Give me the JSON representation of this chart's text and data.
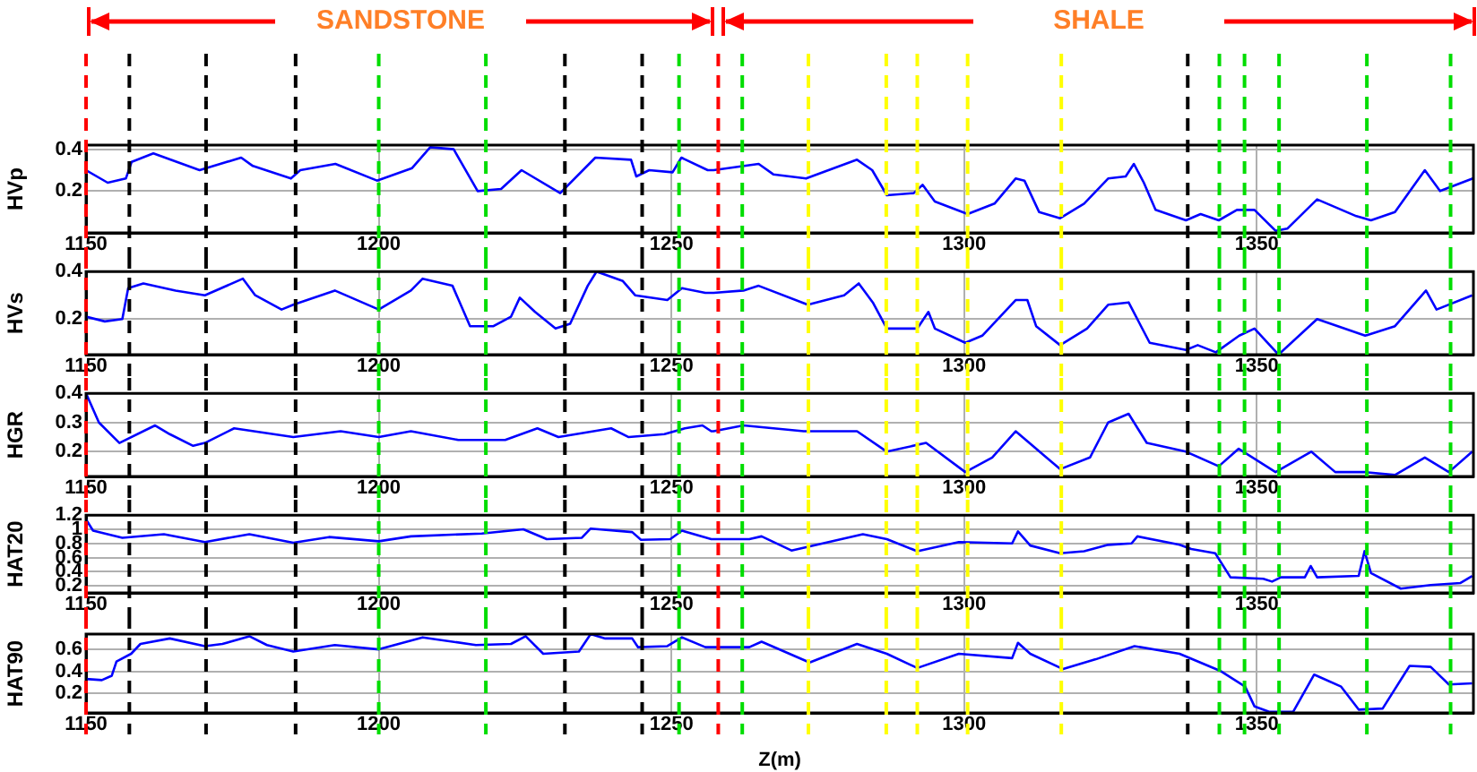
{
  "chart_data": [
    {
      "type": "line",
      "ylabel": "HVp",
      "xlim": [
        1150,
        1387
      ],
      "xticks": [
        1150,
        1200,
        1250,
        1300,
        1350
      ],
      "ylim": [
        0,
        0.42
      ],
      "yticks": [
        0.2,
        0.4
      ],
      "grid": true,
      "legend": false,
      "color": "#0000ff",
      "x": [
        1150,
        1153.7,
        1156.8,
        1157.8,
        1161.5,
        1169.4,
        1176.5,
        1178.5,
        1185,
        1186.6,
        1192.6,
        1199.7,
        1205.7,
        1208.8,
        1212.8,
        1216.9,
        1220.9,
        1224.4,
        1231,
        1237,
        1243.1,
        1244,
        1246.2,
        1250.2,
        1251.7,
        1256.2,
        1257.2,
        1264.9,
        1267.4,
        1273,
        1281.7,
        1284.3,
        1286.8,
        1291.4,
        1292.9,
        1295,
        1300.6,
        1305.2,
        1308.8,
        1310.3,
        1312.8,
        1316.4,
        1320.5,
        1324.6,
        1327.6,
        1329,
        1330.7,
        1332.7,
        1337.9,
        1340.4,
        1343.5,
        1346.6,
        1349.6,
        1353.2,
        1355.2,
        1360.3,
        1367,
        1369.5,
        1373.6,
        1378.7,
        1381.3,
        1386.9
      ],
      "values": [
        0.3,
        0.24,
        0.26,
        0.34,
        0.38,
        0.3,
        0.36,
        0.32,
        0.26,
        0.3,
        0.33,
        0.25,
        0.31,
        0.41,
        0.4,
        0.2,
        0.21,
        0.3,
        0.19,
        0.36,
        0.35,
        0.27,
        0.3,
        0.29,
        0.36,
        0.3,
        0.3,
        0.33,
        0.28,
        0.26,
        0.35,
        0.3,
        0.18,
        0.19,
        0.23,
        0.15,
        0.09,
        0.14,
        0.26,
        0.25,
        0.1,
        0.07,
        0.14,
        0.26,
        0.27,
        0.33,
        0.24,
        0.11,
        0.06,
        0.09,
        0.06,
        0.11,
        0.11,
        0.01,
        0.02,
        0.16,
        0.08,
        0.06,
        0.1,
        0.3,
        0.2,
        0.26
      ],
      "annotations": [
        "SANDSTONE",
        "SHALE"
      ],
      "ref_lines": [
        {
          "axis": "x",
          "value": 1150,
          "color": "#ff0000",
          "line_style": "dashed"
        },
        {
          "axis": "x",
          "value": 1258,
          "color": "#ff0000",
          "line_style": "dashed"
        },
        {
          "axis": "x",
          "value": 1157.4,
          "color": "#000000",
          "line_style": "dashed"
        },
        {
          "axis": "x",
          "value": 1170.5,
          "color": "#000000",
          "line_style": "dashed"
        },
        {
          "axis": "x",
          "value": 1185.8,
          "color": "#000000",
          "line_style": "dashed"
        },
        {
          "axis": "x",
          "value": 1231.8,
          "color": "#000000",
          "line_style": "dashed"
        },
        {
          "axis": "x",
          "value": 1245,
          "color": "#000000",
          "line_style": "dashed"
        },
        {
          "axis": "x",
          "value": 1338.2,
          "color": "#000000",
          "line_style": "dashed"
        },
        {
          "axis": "x",
          "value": 1200,
          "color": "#00dd00",
          "line_style": "dashed"
        },
        {
          "axis": "x",
          "value": 1218.3,
          "color": "#00dd00",
          "line_style": "dashed"
        },
        {
          "axis": "x",
          "value": 1251.3,
          "color": "#00dd00",
          "line_style": "dashed"
        },
        {
          "axis": "x",
          "value": 1262.1,
          "color": "#00dd00",
          "line_style": "dashed"
        },
        {
          "axis": "x",
          "value": 1343.6,
          "color": "#00dd00",
          "line_style": "dashed"
        },
        {
          "axis": "x",
          "value": 1347.9,
          "color": "#00dd00",
          "line_style": "dashed"
        },
        {
          "axis": "x",
          "value": 1353.8,
          "color": "#00dd00",
          "line_style": "dashed"
        },
        {
          "axis": "x",
          "value": 1368.8,
          "color": "#00dd00",
          "line_style": "dashed"
        },
        {
          "axis": "x",
          "value": 1383.1,
          "color": "#00dd00",
          "line_style": "dashed"
        },
        {
          "axis": "x",
          "value": 1273.4,
          "color": "#ffff00",
          "line_style": "dashed"
        },
        {
          "axis": "x",
          "value": 1286.7,
          "color": "#ffff00",
          "line_style": "dashed"
        },
        {
          "axis": "x",
          "value": 1292,
          "color": "#ffff00",
          "line_style": "dashed"
        },
        {
          "axis": "x",
          "value": 1300.6,
          "color": "#ffff00",
          "line_style": "dashed"
        },
        {
          "axis": "x",
          "value": 1316.6,
          "color": "#ffff00",
          "line_style": "dashed"
        }
      ]
    },
    {
      "type": "line",
      "ylabel": "HVs",
      "xlim": [
        1150,
        1387
      ],
      "xticks": [
        1150,
        1200,
        1250,
        1300,
        1350
      ],
      "ylim": [
        0.05,
        0.4
      ],
      "yticks": [
        0.2,
        0.4
      ],
      "grid": true,
      "legend": false,
      "color": "#0000ff",
      "x": [
        1150,
        1153.2,
        1156.2,
        1157.2,
        1159.8,
        1165.3,
        1170.3,
        1176.8,
        1178.9,
        1183.4,
        1185.4,
        1192.5,
        1200,
        1205.5,
        1207.5,
        1212.6,
        1215.6,
        1219.6,
        1222.6,
        1224.1,
        1226.7,
        1230.2,
        1232.7,
        1235.7,
        1237.2,
        1241.7,
        1243.8,
        1249.3,
        1251.8,
        1255.8,
        1257.2,
        1262.3,
        1264.9,
        1273.3,
        1279.5,
        1282,
        1284.4,
        1286.8,
        1292,
        1293.9,
        1295,
        1300.2,
        1303.1,
        1308.8,
        1310.8,
        1312.3,
        1316.4,
        1321,
        1324.6,
        1328.1,
        1331.7,
        1337.9,
        1339.9,
        1343,
        1347,
        1349.6,
        1353.7,
        1360.3,
        1368.5,
        1373.6,
        1378.9,
        1380.7,
        1386.8
      ],
      "values": [
        0.21,
        0.19,
        0.2,
        0.33,
        0.35,
        0.32,
        0.3,
        0.37,
        0.3,
        0.24,
        0.26,
        0.32,
        0.24,
        0.32,
        0.37,
        0.34,
        0.17,
        0.17,
        0.21,
        0.29,
        0.23,
        0.16,
        0.18,
        0.34,
        0.4,
        0.36,
        0.3,
        0.28,
        0.33,
        0.31,
        0.31,
        0.32,
        0.34,
        0.26,
        0.3,
        0.35,
        0.27,
        0.16,
        0.16,
        0.23,
        0.16,
        0.1,
        0.13,
        0.28,
        0.28,
        0.17,
        0.09,
        0.16,
        0.26,
        0.27,
        0.1,
        0.07,
        0.09,
        0.06,
        0.13,
        0.16,
        0.05,
        0.2,
        0.13,
        0.17,
        0.32,
        0.24,
        0.3
      ],
      "ref_lines": [
        {
          "axis": "x",
          "value": 1150,
          "color": "#ff0000",
          "line_style": "dashed"
        },
        {
          "axis": "x",
          "value": 1258,
          "color": "#ff0000",
          "line_style": "dashed"
        },
        {
          "axis": "x",
          "value": 1157.4,
          "color": "#000000",
          "line_style": "dashed"
        },
        {
          "axis": "x",
          "value": 1170.5,
          "color": "#000000",
          "line_style": "dashed"
        },
        {
          "axis": "x",
          "value": 1185.8,
          "color": "#000000",
          "line_style": "dashed"
        },
        {
          "axis": "x",
          "value": 1231.8,
          "color": "#000000",
          "line_style": "dashed"
        },
        {
          "axis": "x",
          "value": 1245,
          "color": "#000000",
          "line_style": "dashed"
        },
        {
          "axis": "x",
          "value": 1338.2,
          "color": "#000000",
          "line_style": "dashed"
        },
        {
          "axis": "x",
          "value": 1200,
          "color": "#00dd00",
          "line_style": "dashed"
        },
        {
          "axis": "x",
          "value": 1218.3,
          "color": "#00dd00",
          "line_style": "dashed"
        },
        {
          "axis": "x",
          "value": 1251.3,
          "color": "#00dd00",
          "line_style": "dashed"
        },
        {
          "axis": "x",
          "value": 1262.1,
          "color": "#00dd00",
          "line_style": "dashed"
        },
        {
          "axis": "x",
          "value": 1343.6,
          "color": "#00dd00",
          "line_style": "dashed"
        },
        {
          "axis": "x",
          "value": 1347.9,
          "color": "#00dd00",
          "line_style": "dashed"
        },
        {
          "axis": "x",
          "value": 1353.8,
          "color": "#00dd00",
          "line_style": "dashed"
        },
        {
          "axis": "x",
          "value": 1368.8,
          "color": "#00dd00",
          "line_style": "dashed"
        },
        {
          "axis": "x",
          "value": 1383.1,
          "color": "#00dd00",
          "line_style": "dashed"
        },
        {
          "axis": "x",
          "value": 1273.4,
          "color": "#ffff00",
          "line_style": "dashed"
        },
        {
          "axis": "x",
          "value": 1286.7,
          "color": "#ffff00",
          "line_style": "dashed"
        },
        {
          "axis": "x",
          "value": 1292,
          "color": "#ffff00",
          "line_style": "dashed"
        },
        {
          "axis": "x",
          "value": 1300.6,
          "color": "#ffff00",
          "line_style": "dashed"
        },
        {
          "axis": "x",
          "value": 1316.6,
          "color": "#ffff00",
          "line_style": "dashed"
        }
      ]
    },
    {
      "type": "line",
      "ylabel": "HGR",
      "xlim": [
        1150,
        1387
      ],
      "xticks": [
        1150,
        1200,
        1250,
        1300,
        1350
      ],
      "ylim": [
        0.115,
        0.4
      ],
      "yticks": [
        0.2,
        0.3,
        0.4
      ],
      "grid": true,
      "legend": false,
      "color": "#0000ff",
      "x": [
        1150,
        1152.2,
        1155.7,
        1161.8,
        1164.3,
        1168.3,
        1170.3,
        1175.3,
        1185.4,
        1193.5,
        1200,
        1205.5,
        1213.6,
        1221.6,
        1227.1,
        1230.7,
        1239.7,
        1242.7,
        1248.8,
        1252.3,
        1255.3,
        1256.8,
        1257.2,
        1262.3,
        1272.6,
        1281.7,
        1286.8,
        1293.5,
        1300.2,
        1304.8,
        1308.8,
        1312.3,
        1316.4,
        1321.5,
        1324.6,
        1328.1,
        1331.2,
        1337.9,
        1343.5,
        1346.9,
        1353.2,
        1359.3,
        1363.4,
        1368.5,
        1373.6,
        1378.7,
        1382.8,
        1386.8
      ],
      "values": [
        0.4,
        0.3,
        0.23,
        0.29,
        0.26,
        0.22,
        0.23,
        0.28,
        0.25,
        0.27,
        0.25,
        0.27,
        0.24,
        0.24,
        0.28,
        0.25,
        0.28,
        0.25,
        0.26,
        0.28,
        0.29,
        0.27,
        0.27,
        0.29,
        0.27,
        0.27,
        0.2,
        0.23,
        0.13,
        0.18,
        0.27,
        0.21,
        0.14,
        0.18,
        0.3,
        0.33,
        0.23,
        0.2,
        0.15,
        0.21,
        0.13,
        0.2,
        0.13,
        0.13,
        0.12,
        0.18,
        0.13,
        0.2
      ],
      "ref_lines": [
        {
          "axis": "x",
          "value": 1150,
          "color": "#ff0000",
          "line_style": "dashed"
        },
        {
          "axis": "x",
          "value": 1258,
          "color": "#ff0000",
          "line_style": "dashed"
        },
        {
          "axis": "x",
          "value": 1157.4,
          "color": "#000000",
          "line_style": "dashed"
        },
        {
          "axis": "x",
          "value": 1170.5,
          "color": "#000000",
          "line_style": "dashed"
        },
        {
          "axis": "x",
          "value": 1185.8,
          "color": "#000000",
          "line_style": "dashed"
        },
        {
          "axis": "x",
          "value": 1231.8,
          "color": "#000000",
          "line_style": "dashed"
        },
        {
          "axis": "x",
          "value": 1245,
          "color": "#000000",
          "line_style": "dashed"
        },
        {
          "axis": "x",
          "value": 1338.2,
          "color": "#000000",
          "line_style": "dashed"
        },
        {
          "axis": "x",
          "value": 1200,
          "color": "#00dd00",
          "line_style": "dashed"
        },
        {
          "axis": "x",
          "value": 1218.3,
          "color": "#00dd00",
          "line_style": "dashed"
        },
        {
          "axis": "x",
          "value": 1251.3,
          "color": "#00dd00",
          "line_style": "dashed"
        },
        {
          "axis": "x",
          "value": 1262.1,
          "color": "#00dd00",
          "line_style": "dashed"
        },
        {
          "axis": "x",
          "value": 1343.6,
          "color": "#00dd00",
          "line_style": "dashed"
        },
        {
          "axis": "x",
          "value": 1347.9,
          "color": "#00dd00",
          "line_style": "dashed"
        },
        {
          "axis": "x",
          "value": 1353.8,
          "color": "#00dd00",
          "line_style": "dashed"
        },
        {
          "axis": "x",
          "value": 1368.8,
          "color": "#00dd00",
          "line_style": "dashed"
        },
        {
          "axis": "x",
          "value": 1383.1,
          "color": "#00dd00",
          "line_style": "dashed"
        },
        {
          "axis": "x",
          "value": 1273.4,
          "color": "#ffff00",
          "line_style": "dashed"
        },
        {
          "axis": "x",
          "value": 1286.7,
          "color": "#ffff00",
          "line_style": "dashed"
        },
        {
          "axis": "x",
          "value": 1292,
          "color": "#ffff00",
          "line_style": "dashed"
        },
        {
          "axis": "x",
          "value": 1300.6,
          "color": "#ffff00",
          "line_style": "dashed"
        },
        {
          "axis": "x",
          "value": 1316.6,
          "color": "#ffff00",
          "line_style": "dashed"
        }
      ]
    },
    {
      "type": "line",
      "ylabel": "HAT20",
      "xlim": [
        1150,
        1387
      ],
      "xticks": [
        1150,
        1200,
        1250,
        1300,
        1350
      ],
      "ylim": [
        0.1,
        1.2
      ],
      "yticks": [
        0.2,
        0.4,
        0.6,
        0.8,
        1,
        1.2
      ],
      "grid": true,
      "legend": false,
      "color": "#0000ff",
      "x": [
        1150,
        1151.2,
        1156.2,
        1163.3,
        1170.3,
        1177.9,
        1185.4,
        1191.5,
        1200,
        1205.5,
        1217.6,
        1224.7,
        1228.7,
        1234.7,
        1236.2,
        1243.3,
        1244.8,
        1249.8,
        1251.8,
        1256.8,
        1257.2,
        1263.3,
        1265.4,
        1270.5,
        1282.7,
        1286.8,
        1292,
        1299.1,
        1308.2,
        1309.2,
        1311.3,
        1316.4,
        1320.5,
        1324.6,
        1328.6,
        1329.6,
        1336.8,
        1338.8,
        1342.9,
        1345.5,
        1351.1,
        1352.6,
        1354.1,
        1358.2,
        1359.2,
        1360.3,
        1367.4,
        1368.4,
        1369.5,
        1374.6,
        1379.7,
        1384.8,
        1386.8
      ],
      "values": [
        1.14,
        0.98,
        0.88,
        0.93,
        0.82,
        0.93,
        0.81,
        0.89,
        0.83,
        0.9,
        0.94,
        1,
        0.86,
        0.88,
        1.01,
        0.96,
        0.85,
        0.86,
        0.98,
        0.86,
        0.86,
        0.86,
        0.9,
        0.7,
        0.93,
        0.86,
        0.69,
        0.82,
        0.8,
        0.97,
        0.77,
        0.66,
        0.69,
        0.78,
        0.8,
        0.9,
        0.78,
        0.72,
        0.66,
        0.32,
        0.3,
        0.26,
        0.32,
        0.32,
        0.48,
        0.32,
        0.34,
        0.69,
        0.38,
        0.16,
        0.21,
        0.24,
        0.34
      ],
      "ref_lines": [
        {
          "axis": "x",
          "value": 1150,
          "color": "#ff0000",
          "line_style": "dashed"
        },
        {
          "axis": "x",
          "value": 1258,
          "color": "#ff0000",
          "line_style": "dashed"
        },
        {
          "axis": "x",
          "value": 1157.4,
          "color": "#000000",
          "line_style": "dashed"
        },
        {
          "axis": "x",
          "value": 1170.5,
          "color": "#000000",
          "line_style": "dashed"
        },
        {
          "axis": "x",
          "value": 1185.8,
          "color": "#000000",
          "line_style": "dashed"
        },
        {
          "axis": "x",
          "value": 1231.8,
          "color": "#000000",
          "line_style": "dashed"
        },
        {
          "axis": "x",
          "value": 1245,
          "color": "#000000",
          "line_style": "dashed"
        },
        {
          "axis": "x",
          "value": 1338.2,
          "color": "#000000",
          "line_style": "dashed"
        },
        {
          "axis": "x",
          "value": 1200,
          "color": "#00dd00",
          "line_style": "dashed"
        },
        {
          "axis": "x",
          "value": 1218.3,
          "color": "#00dd00",
          "line_style": "dashed"
        },
        {
          "axis": "x",
          "value": 1251.3,
          "color": "#00dd00",
          "line_style": "dashed"
        },
        {
          "axis": "x",
          "value": 1262.1,
          "color": "#00dd00",
          "line_style": "dashed"
        },
        {
          "axis": "x",
          "value": 1343.6,
          "color": "#00dd00",
          "line_style": "dashed"
        },
        {
          "axis": "x",
          "value": 1347.9,
          "color": "#00dd00",
          "line_style": "dashed"
        },
        {
          "axis": "x",
          "value": 1353.8,
          "color": "#00dd00",
          "line_style": "dashed"
        },
        {
          "axis": "x",
          "value": 1368.8,
          "color": "#00dd00",
          "line_style": "dashed"
        },
        {
          "axis": "x",
          "value": 1383.1,
          "color": "#00dd00",
          "line_style": "dashed"
        },
        {
          "axis": "x",
          "value": 1273.4,
          "color": "#ffff00",
          "line_style": "dashed"
        },
        {
          "axis": "x",
          "value": 1286.7,
          "color": "#ffff00",
          "line_style": "dashed"
        },
        {
          "axis": "x",
          "value": 1292,
          "color": "#ffff00",
          "line_style": "dashed"
        },
        {
          "axis": "x",
          "value": 1300.6,
          "color": "#ffff00",
          "line_style": "dashed"
        },
        {
          "axis": "x",
          "value": 1316.6,
          "color": "#ffff00",
          "line_style": "dashed"
        }
      ]
    },
    {
      "type": "line",
      "ylabel": "HAT90",
      "xlabel": "Z(m)",
      "xlim": [
        1150,
        1387
      ],
      "xticks": [
        1150,
        1200,
        1250,
        1300,
        1350
      ],
      "ylim": [
        0.02,
        0.74
      ],
      "yticks": [
        0.2,
        0.4,
        0.6
      ],
      "grid": true,
      "legend": false,
      "color": "#0000ff",
      "x": [
        1150,
        1152.7,
        1154.4,
        1155.2,
        1157.7,
        1159.3,
        1164.3,
        1170.3,
        1173.3,
        1177.9,
        1180.9,
        1185.4,
        1192.5,
        1200,
        1207.5,
        1216.6,
        1222.6,
        1225.1,
        1228.1,
        1234.2,
        1236.2,
        1238.7,
        1243.3,
        1244.3,
        1249.3,
        1251.8,
        1255.8,
        1257.2,
        1263.3,
        1265.4,
        1273.6,
        1281.7,
        1286.8,
        1292,
        1299.1,
        1308.2,
        1309.2,
        1311.3,
        1316.9,
        1322.5,
        1329.1,
        1336.8,
        1343.9,
        1348,
        1349.6,
        1352.1,
        1356.2,
        1359.8,
        1364.4,
        1367.4,
        1371.5,
        1376.1,
        1379.7,
        1382.8,
        1386.8
      ],
      "values": [
        0.33,
        0.32,
        0.36,
        0.49,
        0.56,
        0.65,
        0.7,
        0.63,
        0.65,
        0.72,
        0.64,
        0.58,
        0.64,
        0.6,
        0.71,
        0.64,
        0.65,
        0.72,
        0.56,
        0.58,
        0.74,
        0.7,
        0.7,
        0.62,
        0.63,
        0.71,
        0.62,
        0.62,
        0.62,
        0.67,
        0.48,
        0.65,
        0.56,
        0.43,
        0.56,
        0.52,
        0.66,
        0.56,
        0.42,
        0.51,
        0.63,
        0.56,
        0.4,
        0.26,
        0.08,
        0.03,
        0.03,
        0.37,
        0.26,
        0.05,
        0.06,
        0.45,
        0.44,
        0.28,
        0.29
      ],
      "ref_lines": [
        {
          "axis": "x",
          "value": 1150,
          "color": "#ff0000",
          "line_style": "dashed"
        },
        {
          "axis": "x",
          "value": 1258,
          "color": "#ff0000",
          "line_style": "dashed"
        },
        {
          "axis": "x",
          "value": 1157.4,
          "color": "#000000",
          "line_style": "dashed"
        },
        {
          "axis": "x",
          "value": 1170.5,
          "color": "#000000",
          "line_style": "dashed"
        },
        {
          "axis": "x",
          "value": 1185.8,
          "color": "#000000",
          "line_style": "dashed"
        },
        {
          "axis": "x",
          "value": 1231.8,
          "color": "#000000",
          "line_style": "dashed"
        },
        {
          "axis": "x",
          "value": 1245,
          "color": "#000000",
          "line_style": "dashed"
        },
        {
          "axis": "x",
          "value": 1338.2,
          "color": "#000000",
          "line_style": "dashed"
        },
        {
          "axis": "x",
          "value": 1200,
          "color": "#00dd00",
          "line_style": "dashed"
        },
        {
          "axis": "x",
          "value": 1218.3,
          "color": "#00dd00",
          "line_style": "dashed"
        },
        {
          "axis": "x",
          "value": 1251.3,
          "color": "#00dd00",
          "line_style": "dashed"
        },
        {
          "axis": "x",
          "value": 1262.1,
          "color": "#00dd00",
          "line_style": "dashed"
        },
        {
          "axis": "x",
          "value": 1343.6,
          "color": "#00dd00",
          "line_style": "dashed"
        },
        {
          "axis": "x",
          "value": 1347.9,
          "color": "#00dd00",
          "line_style": "dashed"
        },
        {
          "axis": "x",
          "value": 1353.8,
          "color": "#00dd00",
          "line_style": "dashed"
        },
        {
          "axis": "x",
          "value": 1368.8,
          "color": "#00dd00",
          "line_style": "dashed"
        },
        {
          "axis": "x",
          "value": 1383.1,
          "color": "#00dd00",
          "line_style": "dashed"
        },
        {
          "axis": "x",
          "value": 1273.4,
          "color": "#ffff00",
          "line_style": "dashed"
        },
        {
          "axis": "x",
          "value": 1286.7,
          "color": "#ffff00",
          "line_style": "dashed"
        },
        {
          "axis": "x",
          "value": 1292,
          "color": "#ffff00",
          "line_style": "dashed"
        },
        {
          "axis": "x",
          "value": 1300.6,
          "color": "#ffff00",
          "line_style": "dashed"
        },
        {
          "axis": "x",
          "value": 1316.6,
          "color": "#ffff00",
          "line_style": "dashed"
        }
      ]
    }
  ]
}
